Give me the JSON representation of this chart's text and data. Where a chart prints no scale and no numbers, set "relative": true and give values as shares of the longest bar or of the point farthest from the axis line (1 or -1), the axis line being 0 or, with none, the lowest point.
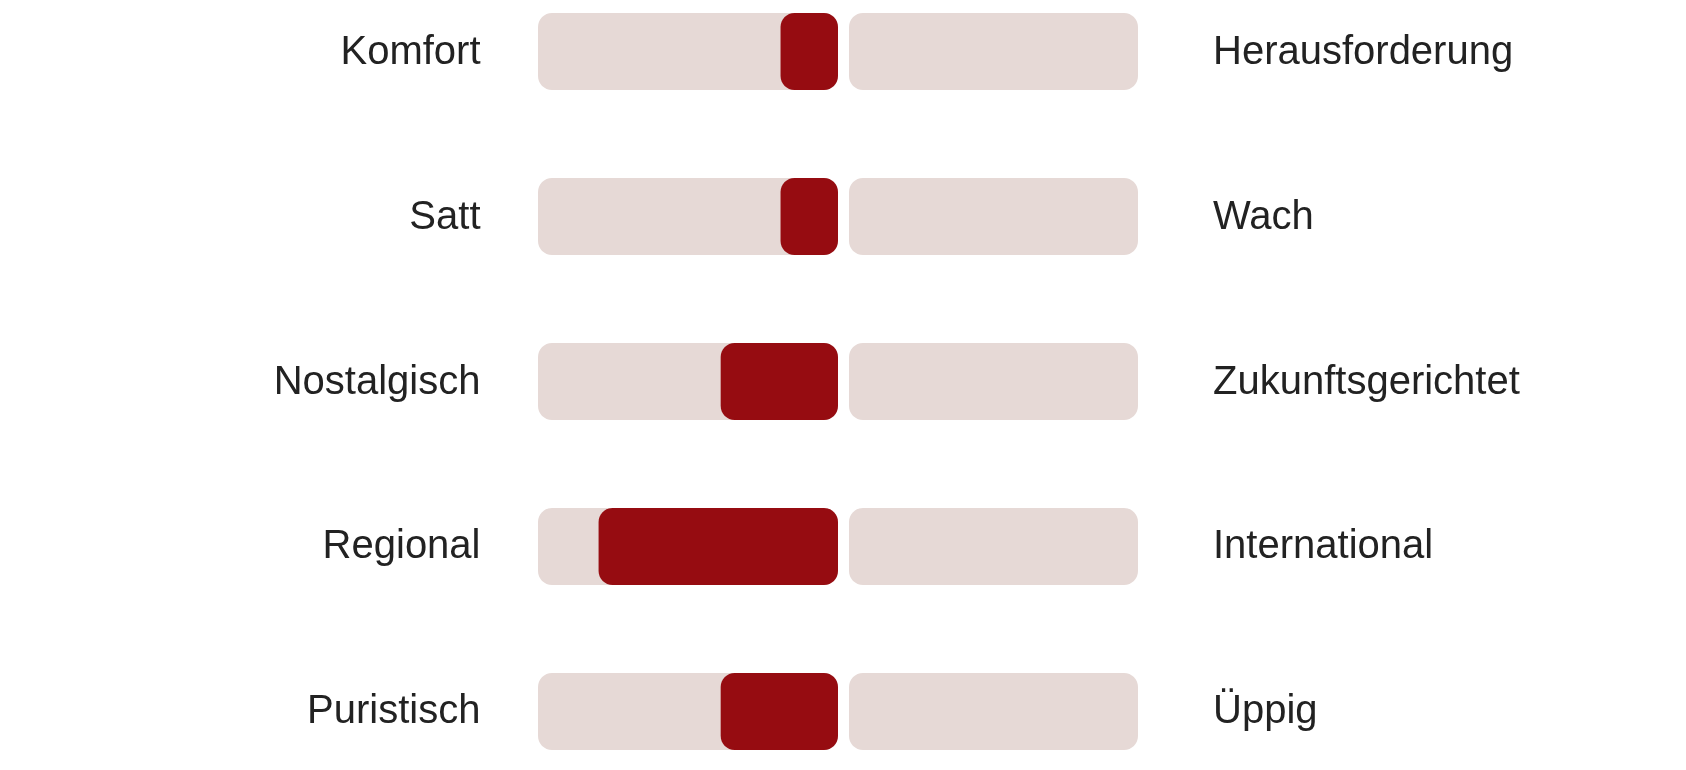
{
  "chart_data": {
    "type": "bar",
    "orientation": "horizontal",
    "relative": true,
    "categories": [
      "Komfort",
      "Satt",
      "Nostalgisch",
      "Regional",
      "Puristisch"
    ],
    "y2_categories": [
      "Herausforderung",
      "Wach",
      "Zukunftsgerichtet",
      "International",
      "Üppig"
    ],
    "values": [
      -0.24,
      -0.24,
      -0.49,
      -1,
      -0.49
    ],
    "color": "#960c11"
  }
}
